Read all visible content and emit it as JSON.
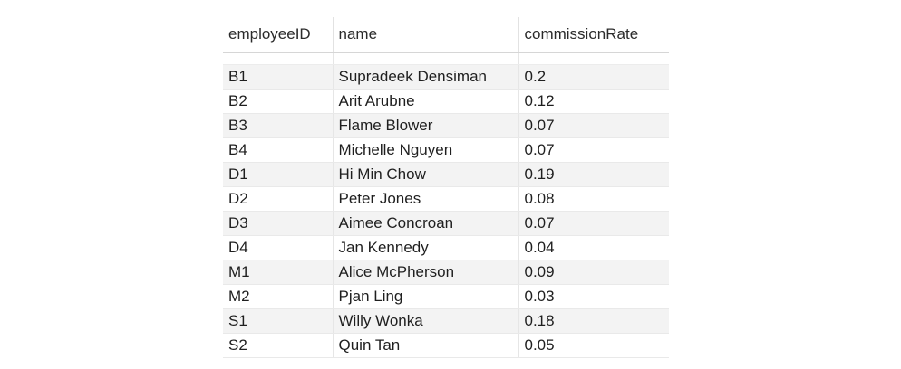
{
  "table": {
    "columns": [
      "employeeID",
      "name",
      "commissionRate"
    ],
    "rows": [
      [
        "B1",
        "Supradeek Densiman",
        "0.2"
      ],
      [
        "B2",
        "Arit Arubne",
        "0.12"
      ],
      [
        "B3",
        "Flame Blower",
        "0.07"
      ],
      [
        "B4",
        "Michelle Nguyen",
        "0.07"
      ],
      [
        "D1",
        "Hi Min Chow",
        "0.19"
      ],
      [
        "D2",
        "Peter Jones",
        "0.08"
      ],
      [
        "D3",
        "Aimee Concroan",
        "0.07"
      ],
      [
        "D4",
        "Jan Kennedy",
        "0.04"
      ],
      [
        "M1",
        "Alice McPherson",
        "0.09"
      ],
      [
        "M2",
        "Pjan Ling",
        "0.03"
      ],
      [
        "S1",
        "Willy Wonka",
        "0.18"
      ],
      [
        "S2",
        "Quin Tan",
        "0.05"
      ]
    ]
  },
  "colors": {
    "header_border": "#d6d6d6",
    "row_alt": "#f3f3f3",
    "text": "#1f1f1f"
  }
}
